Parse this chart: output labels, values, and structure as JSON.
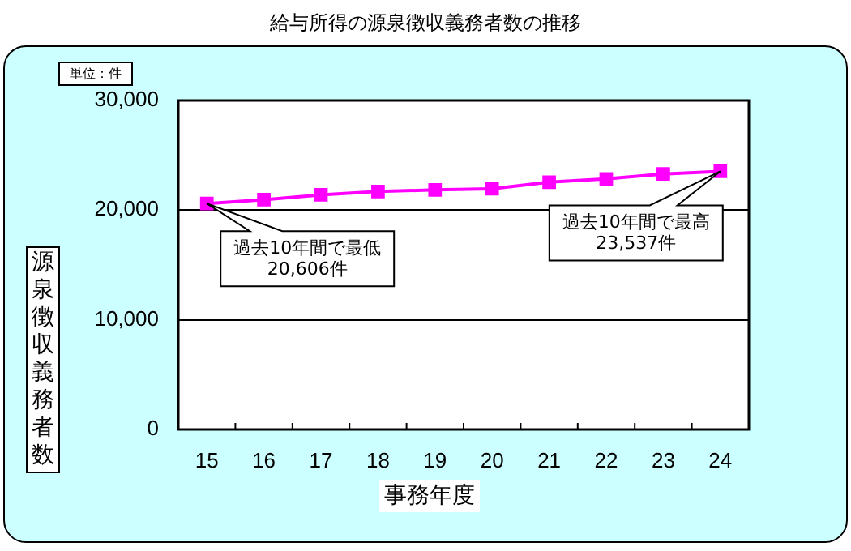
{
  "chart_data": {
    "type": "line",
    "title": "給与所得の源泉徴収義務者数の推移",
    "xlabel": "事務年度",
    "ylabel": "源泉徴収義務者数",
    "categories": [
      "15",
      "16",
      "17",
      "18",
      "19",
      "20",
      "21",
      "22",
      "23",
      "24"
    ],
    "series": [
      {
        "color": "#ff00ff",
        "values": [
          20606,
          20950,
          21400,
          21700,
          21850,
          21950,
          22550,
          22850,
          23300,
          23537
        ]
      }
    ],
    "ylim": [
      0,
      30000
    ],
    "yticks": [
      0,
      {
        "value": 10000,
        "label": "10,000"
      },
      {
        "value": 20000,
        "label": "20,000"
      },
      {
        "value": 30000,
        "label": "30,000"
      }
    ],
    "grid": "y",
    "marker": "square",
    "line_style": "solid",
    "legend": false,
    "annotations": [
      "単位：件",
      {
        "text": "過去10年間で最低\n20,606件",
        "x": "15",
        "y": 20606
      },
      {
        "text": "過去10年間で最高\n23,537件",
        "x": "24",
        "y": 23537
      }
    ]
  }
}
